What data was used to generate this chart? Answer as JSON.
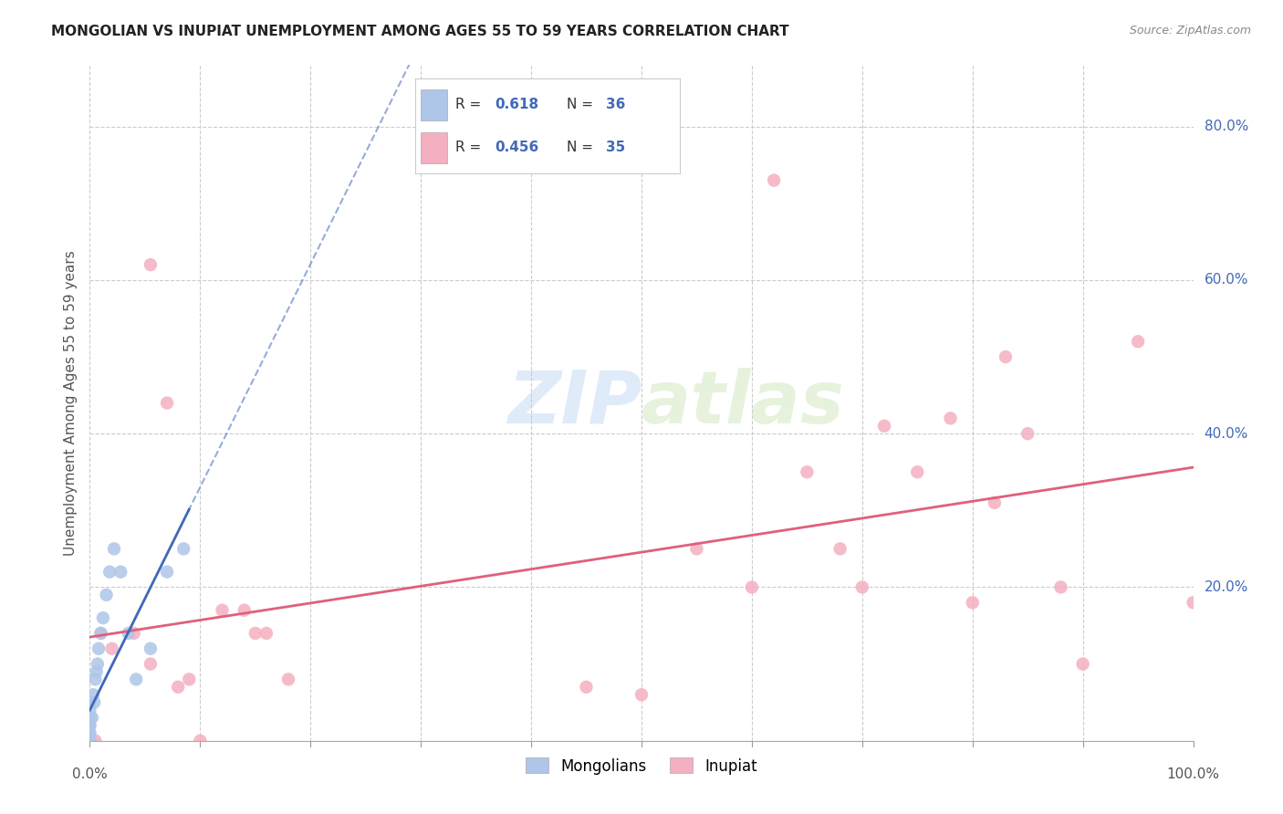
{
  "title": "MONGOLIAN VS INUPIAT UNEMPLOYMENT AMONG AGES 55 TO 59 YEARS CORRELATION CHART",
  "source": "Source: ZipAtlas.com",
  "ylabel": "Unemployment Among Ages 55 to 59 years",
  "mongolian_R": 0.618,
  "mongolian_N": 36,
  "inupiat_R": 0.456,
  "inupiat_N": 35,
  "mongolian_color": "#aec6e8",
  "inupiat_color": "#f4afc0",
  "mongolian_line_color": "#4169b8",
  "inupiat_line_color": "#e0607a",
  "background_color": "#ffffff",
  "mongolian_x": [
    0.0,
    0.0,
    0.0,
    0.0,
    0.0,
    0.0,
    0.0,
    0.0,
    0.0,
    0.0,
    0.0,
    0.0,
    0.0,
    0.0,
    0.0,
    0.0,
    0.0,
    0.0,
    0.002,
    0.003,
    0.004,
    0.005,
    0.006,
    0.007,
    0.008,
    0.01,
    0.012,
    0.015,
    0.018,
    0.022,
    0.028,
    0.035,
    0.042,
    0.055,
    0.07,
    0.085
  ],
  "mongolian_y": [
    0.0,
    0.0,
    0.0,
    0.0,
    0.0,
    0.0,
    0.0,
    0.0,
    0.0,
    0.0,
    0.0,
    0.0,
    0.01,
    0.01,
    0.02,
    0.03,
    0.04,
    0.05,
    0.03,
    0.06,
    0.05,
    0.08,
    0.09,
    0.1,
    0.12,
    0.14,
    0.16,
    0.19,
    0.22,
    0.25,
    0.22,
    0.14,
    0.08,
    0.12,
    0.22,
    0.25
  ],
  "inupiat_x": [
    0.0,
    0.005,
    0.01,
    0.02,
    0.04,
    0.055,
    0.055,
    0.07,
    0.08,
    0.09,
    0.1,
    0.12,
    0.14,
    0.15,
    0.16,
    0.18,
    0.45,
    0.5,
    0.55,
    0.6,
    0.62,
    0.65,
    0.68,
    0.7,
    0.72,
    0.75,
    0.78,
    0.8,
    0.82,
    0.83,
    0.85,
    0.88,
    0.9,
    0.95,
    1.0
  ],
  "inupiat_y": [
    0.02,
    0.0,
    0.14,
    0.12,
    0.14,
    0.62,
    0.1,
    0.44,
    0.07,
    0.08,
    0.0,
    0.17,
    0.17,
    0.14,
    0.14,
    0.08,
    0.07,
    0.06,
    0.25,
    0.2,
    0.73,
    0.35,
    0.25,
    0.2,
    0.41,
    0.35,
    0.42,
    0.18,
    0.31,
    0.5,
    0.4,
    0.2,
    0.1,
    0.52,
    0.18
  ],
  "xlim": [
    0.0,
    1.0
  ],
  "ylim": [
    0.0,
    0.88
  ],
  "ytick_positions": [
    0.0,
    0.2,
    0.4,
    0.6,
    0.8
  ],
  "ytick_labels": [
    "",
    "20.0%",
    "40.0%",
    "60.0%",
    "80.0%"
  ],
  "xtick_left_label": "0.0%",
  "xtick_right_label": "100.0%",
  "grid_color": "#cccccc",
  "watermark_zip": "ZIP",
  "watermark_atlas": "atlas",
  "marker_size": 60,
  "title_fontsize": 11,
  "label_fontsize": 11,
  "tick_color": "#4169b8"
}
